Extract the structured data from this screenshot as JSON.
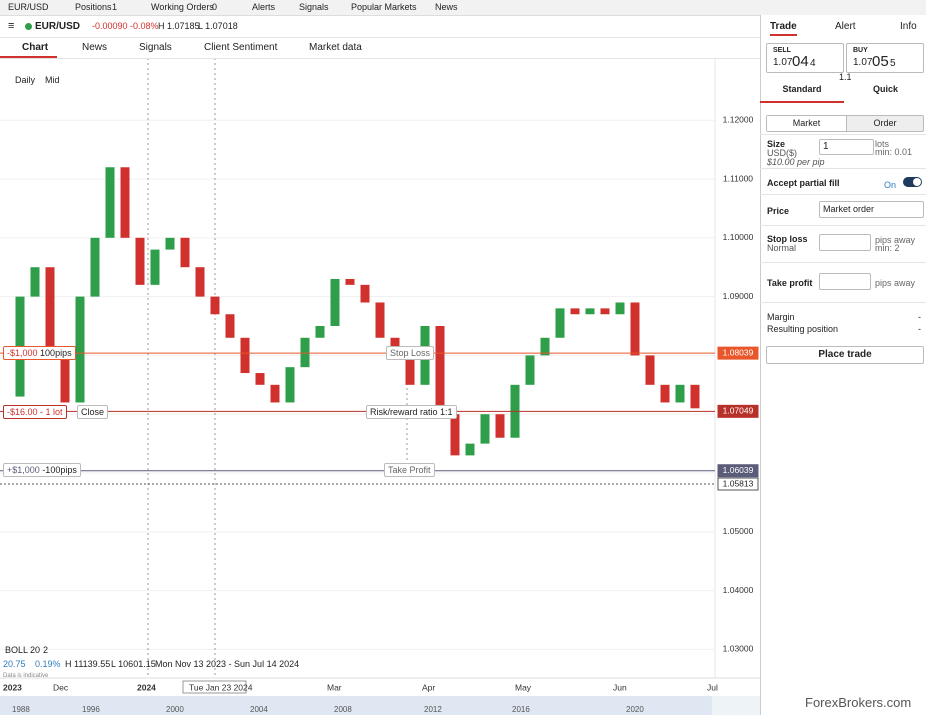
{
  "tabs": {
    "eurusd": "EUR/USD",
    "positions": "Positions",
    "positions_count": "1",
    "working_orders": "Working Orders",
    "working_orders_count": "0",
    "alerts": "Alerts",
    "signals": "Signals",
    "popular_markets": "Popular Markets",
    "news": "News"
  },
  "instrument": {
    "name": "EUR/USD",
    "change": "-0.00090",
    "change_pct": "-0.08%",
    "high": "H 1.07185",
    "low": "L 1.07018"
  },
  "nav": {
    "chart": "Chart",
    "news": "News",
    "signals": "Signals",
    "client_sentiment": "Client Sentiment",
    "market_data": "Market data"
  },
  "toolbar": {
    "daily": "Daily",
    "mid": "Mid"
  },
  "chart": {
    "type": "candlestick",
    "closes": [
      1.073,
      1.09,
      1.095,
      1.08,
      1.072,
      1.09,
      1.1,
      1.112,
      1.1,
      1.092,
      1.098,
      1.1,
      1.095,
      1.09,
      1.087,
      1.083,
      1.077,
      1.075,
      1.072,
      1.078,
      1.083,
      1.085,
      1.093,
      1.092,
      1.089,
      1.083,
      1.08,
      1.075,
      1.085,
      1.07,
      1.063,
      1.065,
      1.07,
      1.066,
      1.075,
      1.08,
      1.083,
      1.088,
      1.087,
      1.088,
      1.087,
      1.089,
      1.08,
      1.075,
      1.072,
      1.075,
      1.071
    ],
    "ylim": [
      1.0282,
      1.1299
    ],
    "yticks": [
      {
        "value": 1.12,
        "label": "1.12000"
      },
      {
        "value": 1.11,
        "label": "1.11000"
      },
      {
        "value": 1.1,
        "label": "1.10000"
      },
      {
        "value": 1.09,
        "label": "1.09000"
      },
      {
        "value": 1.08,
        "label": "1.08000"
      },
      {
        "value": 1.07,
        "label": "1.07000"
      },
      {
        "value": 1.06,
        "label": "1.06000"
      },
      {
        "value": 1.05,
        "label": "1.05000"
      },
      {
        "value": 1.04,
        "label": "1.04000"
      },
      {
        "value": 1.03,
        "label": "1.03000"
      }
    ],
    "levels": [
      {
        "name": "stop-loss",
        "value": 1.08039,
        "color": "#e8562a"
      },
      {
        "name": "current",
        "value": 1.07049,
        "color": "#b8302a"
      },
      {
        "name": "take-profit",
        "value": 1.06039,
        "color": "#5a5c7a"
      },
      {
        "name": "reference",
        "value": 1.05813,
        "color": "#555555"
      }
    ],
    "up_color": "#2e9e4a",
    "down_color": "#d0312d",
    "x_labels": [
      "2023",
      "Dec",
      "2024",
      "Tue Jan 23 2024",
      "Mar",
      "Apr",
      "May",
      "Jun",
      "Jul"
    ],
    "navigator": [
      "1988",
      "1996",
      "2000",
      "2004",
      "2008",
      "2012",
      "2016",
      "2020"
    ]
  },
  "trade_labels": {
    "sl_amount": "-$1,000",
    "sl_pips": "100pips",
    "stop_loss": "Stop Loss",
    "pos_amount": "-$16.00",
    "pos_size": "- 1 lot",
    "close": "Close",
    "rr": "Risk/reward ratio 1:1",
    "tp_amount": "+$1,000",
    "tp_pips": "-100pips",
    "take_profit": "Take Profit"
  },
  "indicator": {
    "boll": "BOLL",
    "period": "20",
    "dev": "2",
    "v1": "20.75",
    "v2": "0.19%",
    "high": "H 11139.55",
    "low": "L 10601.15",
    "range": "Mon Nov 13 2023 - Sun Jul 14 2024",
    "note": "Data is indicative"
  },
  "panel": {
    "tabs": {
      "trade": "Trade",
      "alert": "Alert",
      "info": "Info"
    },
    "sell": {
      "label": "SELL",
      "prefix": "1.07",
      "pips": "04",
      "fraction": "4"
    },
    "buy": {
      "label": "BUY",
      "prefix": "1.07",
      "pips": "05",
      "fraction": "5"
    },
    "spread": "1.1",
    "modes": {
      "standard": "Standard",
      "quick": "Quick"
    },
    "order_types": {
      "market": "Market",
      "order": "Order"
    },
    "size": {
      "label": "Size",
      "currency": "USD($)",
      "per_pip": "$10.00 per pip",
      "value": "1",
      "unit": "lots",
      "min": "min: 0.01"
    },
    "partial_fill": {
      "label": "Accept partial fill",
      "state": "On"
    },
    "price": {
      "label": "Price",
      "value": "Market order"
    },
    "stop_loss": {
      "label": "Stop loss",
      "kind": "Normal",
      "unit": "pips away",
      "min": "min: 2"
    },
    "take_profit": {
      "label": "Take profit",
      "unit": "pips away"
    },
    "margin": {
      "label": "Margin",
      "value": "-"
    },
    "resulting": {
      "label": "Resulting position",
      "value": "-"
    },
    "place": "Place trade"
  },
  "footer": {
    "brand": "ForexBrokers.com"
  }
}
